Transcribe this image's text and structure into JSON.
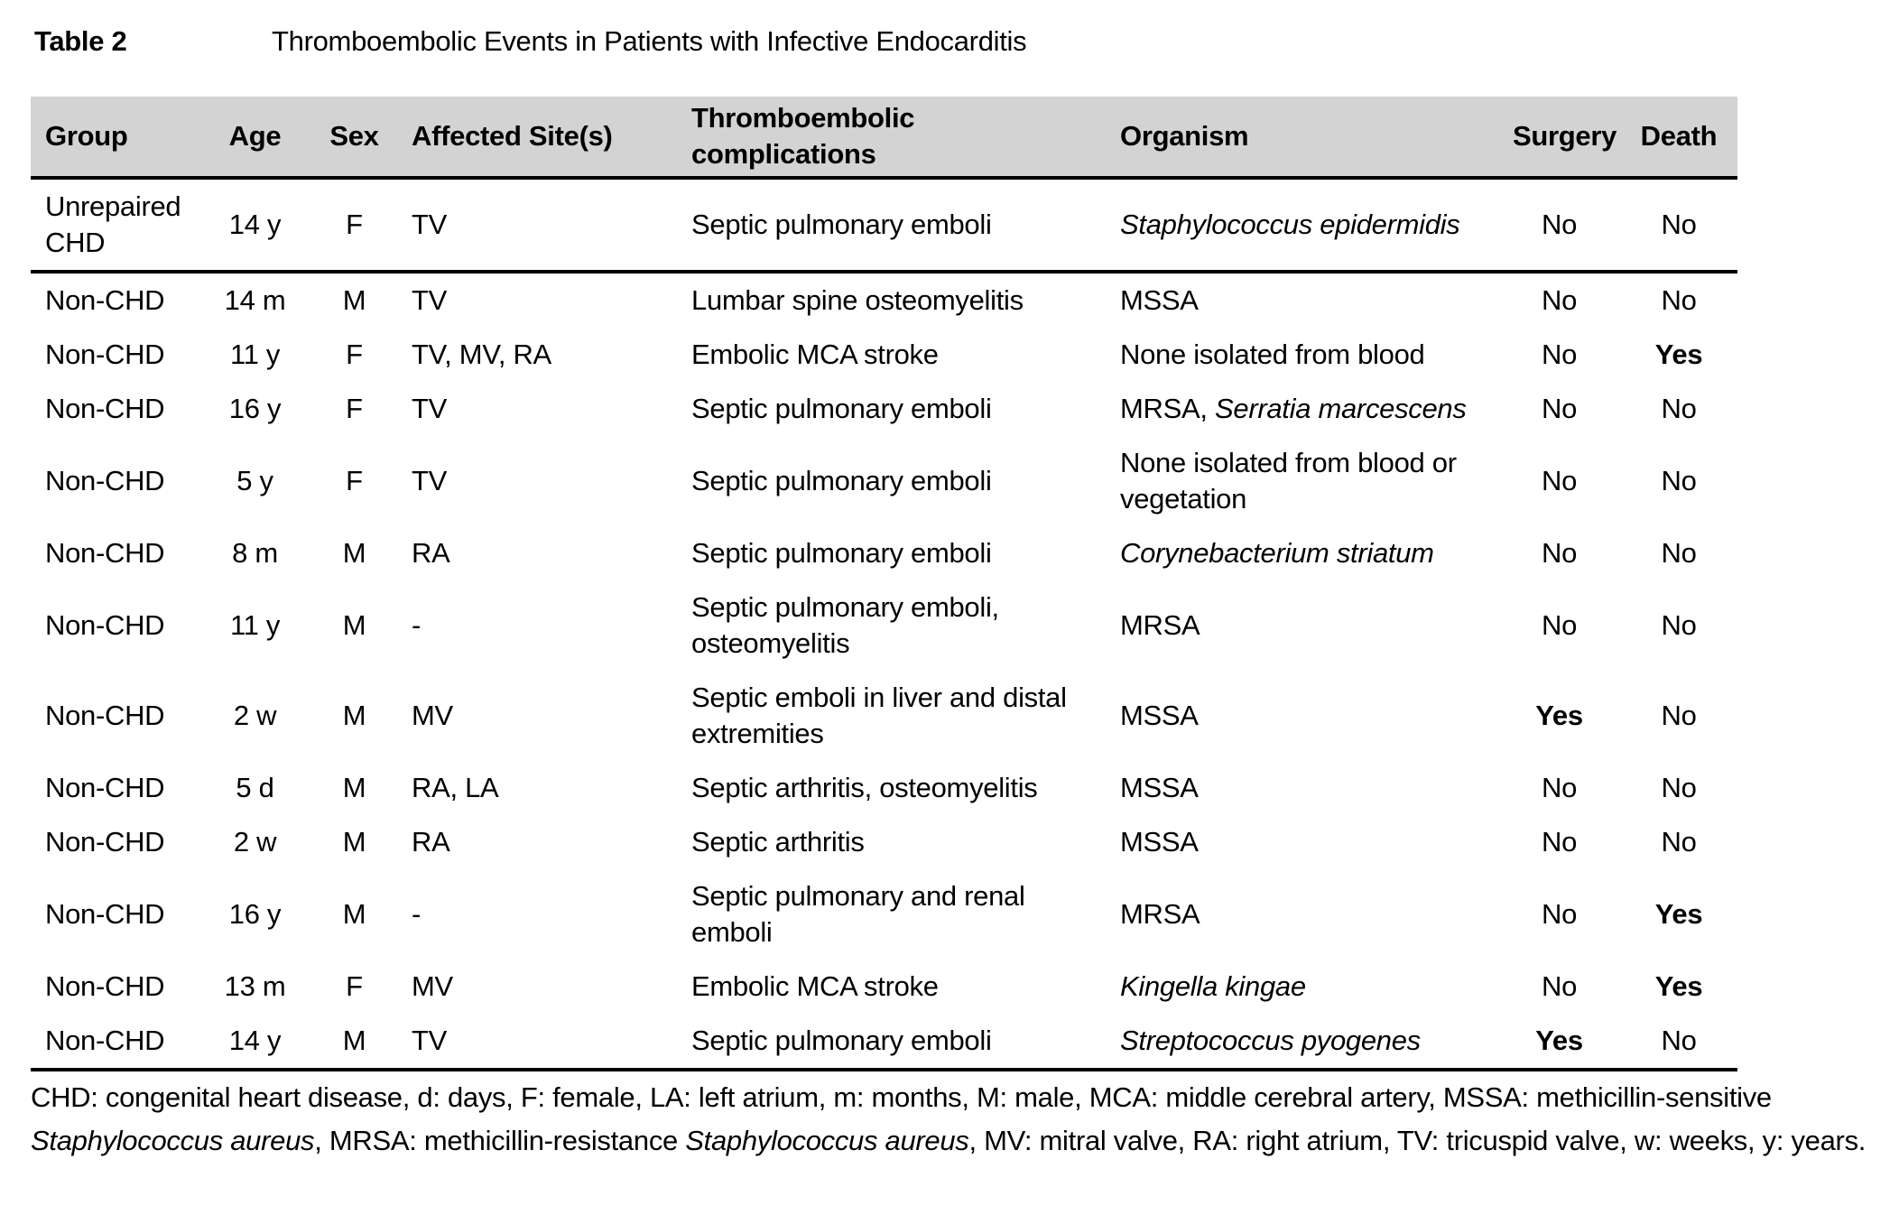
{
  "title": {
    "label": "Table 2",
    "text": "Thromboembolic Events in Patients with Infective Endocarditis"
  },
  "colors": {
    "header_bg": "#d3d3d3",
    "rule": "#000000",
    "page_bg": "#ffffff",
    "text": "#000000"
  },
  "table": {
    "headers": [
      [
        {
          "t": "Group"
        }
      ],
      [
        {
          "t": "Age"
        }
      ],
      [
        {
          "t": "Sex"
        }
      ],
      [
        {
          "t": "Affected Site(s)"
        }
      ],
      [
        {
          "t": "Thromboembolic"
        },
        {
          "br": true
        },
        {
          "t": "complications"
        }
      ],
      [
        {
          "t": "Organism"
        }
      ],
      [
        {
          "t": "Surgery"
        }
      ],
      [
        {
          "t": "Death"
        }
      ]
    ],
    "rows": [
      {
        "group": [
          {
            "t": "Unrepaired"
          },
          {
            "br": true
          },
          {
            "t": "CHD"
          }
        ],
        "age": "14 y",
        "sex": "F",
        "sites": [
          {
            "t": "TV"
          }
        ],
        "complications": [
          {
            "t": "Septic pulmonary emboli"
          }
        ],
        "organism": [
          {
            "t": "Staphylococcus epidermidis",
            "i": true
          }
        ],
        "surgery": "No",
        "death": "No",
        "divider_after": true
      },
      {
        "group": [
          {
            "t": "Non-CHD"
          }
        ],
        "age": "14 m",
        "sex": "M",
        "sites": [
          {
            "t": "TV"
          }
        ],
        "complications": [
          {
            "t": "Lumbar spine osteomyelitis"
          }
        ],
        "organism": [
          {
            "t": "MSSA"
          }
        ],
        "surgery": "No",
        "death": "No",
        "divider_after": false
      },
      {
        "group": [
          {
            "t": "Non-CHD"
          }
        ],
        "age": "11 y",
        "sex": "F",
        "sites": [
          {
            "t": "TV, MV, RA"
          }
        ],
        "complications": [
          {
            "t": "Embolic MCA stroke"
          }
        ],
        "organism": [
          {
            "t": "None isolated from blood"
          }
        ],
        "surgery": "No",
        "death": "Yes",
        "divider_after": false
      },
      {
        "group": [
          {
            "t": "Non-CHD"
          }
        ],
        "age": "16 y",
        "sex": "F",
        "sites": [
          {
            "t": "TV"
          }
        ],
        "complications": [
          {
            "t": "Septic pulmonary emboli"
          }
        ],
        "organism": [
          {
            "t": "MRSA, "
          },
          {
            "t": "Serratia marcescens",
            "i": true
          }
        ],
        "surgery": "No",
        "death": "No",
        "divider_after": false
      },
      {
        "group": [
          {
            "t": "Non-CHD"
          }
        ],
        "age": "5 y",
        "sex": "F",
        "sites": [
          {
            "t": "TV"
          }
        ],
        "complications": [
          {
            "t": "Septic pulmonary emboli"
          }
        ],
        "organism": [
          {
            "t": "None isolated from blood or"
          },
          {
            "br": true
          },
          {
            "t": "vegetation"
          }
        ],
        "surgery": "No",
        "death": "No",
        "divider_after": false
      },
      {
        "group": [
          {
            "t": "Non-CHD"
          }
        ],
        "age": "8 m",
        "sex": "M",
        "sites": [
          {
            "t": "RA"
          }
        ],
        "complications": [
          {
            "t": "Septic pulmonary emboli"
          }
        ],
        "organism": [
          {
            "t": "Corynebacterium striatum",
            "i": true
          }
        ],
        "surgery": "No",
        "death": "No",
        "divider_after": false
      },
      {
        "group": [
          {
            "t": "Non-CHD"
          }
        ],
        "age": "11 y",
        "sex": "M",
        "sites": [
          {
            "t": "-"
          }
        ],
        "complications": [
          {
            "t": "Septic pulmonary emboli,"
          },
          {
            "br": true
          },
          {
            "t": "osteomyelitis"
          }
        ],
        "organism": [
          {
            "t": "MRSA"
          }
        ],
        "surgery": "No",
        "death": "No",
        "divider_after": false
      },
      {
        "group": [
          {
            "t": "Non-CHD"
          }
        ],
        "age": "2 w",
        "sex": "M",
        "sites": [
          {
            "t": "MV"
          }
        ],
        "complications": [
          {
            "t": "Septic emboli in liver and distal"
          },
          {
            "br": true
          },
          {
            "t": "extremities"
          }
        ],
        "organism": [
          {
            "t": "MSSA"
          }
        ],
        "surgery": "Yes",
        "death": "No",
        "divider_after": false
      },
      {
        "group": [
          {
            "t": "Non-CHD"
          }
        ],
        "age": "5 d",
        "sex": "M",
        "sites": [
          {
            "t": "RA, LA"
          }
        ],
        "complications": [
          {
            "t": "Septic arthritis, osteomyelitis"
          }
        ],
        "organism": [
          {
            "t": "MSSA"
          }
        ],
        "surgery": "No",
        "death": "No",
        "divider_after": false
      },
      {
        "group": [
          {
            "t": "Non-CHD"
          }
        ],
        "age": "2 w",
        "sex": "M",
        "sites": [
          {
            "t": "RA"
          }
        ],
        "complications": [
          {
            "t": "Septic arthritis"
          }
        ],
        "organism": [
          {
            "t": "MSSA"
          }
        ],
        "surgery": "No",
        "death": "No",
        "divider_after": false
      },
      {
        "group": [
          {
            "t": "Non-CHD"
          }
        ],
        "age": "16 y",
        "sex": "M",
        "sites": [
          {
            "t": "-"
          }
        ],
        "complications": [
          {
            "t": "Septic pulmonary and renal"
          },
          {
            "br": true
          },
          {
            "t": "emboli"
          }
        ],
        "organism": [
          {
            "t": "MRSA"
          }
        ],
        "surgery": "No",
        "death": "Yes",
        "divider_after": false
      },
      {
        "group": [
          {
            "t": "Non-CHD"
          }
        ],
        "age": "13 m",
        "sex": "F",
        "sites": [
          {
            "t": "MV"
          }
        ],
        "complications": [
          {
            "t": "Embolic MCA stroke"
          }
        ],
        "organism": [
          {
            "t": "Kingella kingae",
            "i": true
          }
        ],
        "surgery": "No",
        "death": "Yes",
        "divider_after": false
      },
      {
        "group": [
          {
            "t": "Non-CHD"
          }
        ],
        "age": "14 y",
        "sex": "M",
        "sites": [
          {
            "t": "TV"
          }
        ],
        "complications": [
          {
            "t": "Septic pulmonary emboli"
          }
        ],
        "organism": [
          {
            "t": "Streptococcus pyogenes",
            "i": true
          }
        ],
        "surgery": "Yes",
        "death": "No",
        "divider_after": true
      }
    ]
  },
  "footnote": [
    {
      "t": "CHD: congenital heart disease, d: days, F: female, LA: left atrium, m: months, M: male, MCA: middle cerebral artery, MSSA: methicillin-sensitive "
    },
    {
      "t": "Staphylococcus aureus",
      "i": true
    },
    {
      "t": ", MRSA: methicillin-resistance "
    },
    {
      "t": "Staphylococcus aureus",
      "i": true
    },
    {
      "t": ", MV: mitral valve, RA: right atrium, TV: tricuspid valve, w: weeks, y: years."
    }
  ]
}
